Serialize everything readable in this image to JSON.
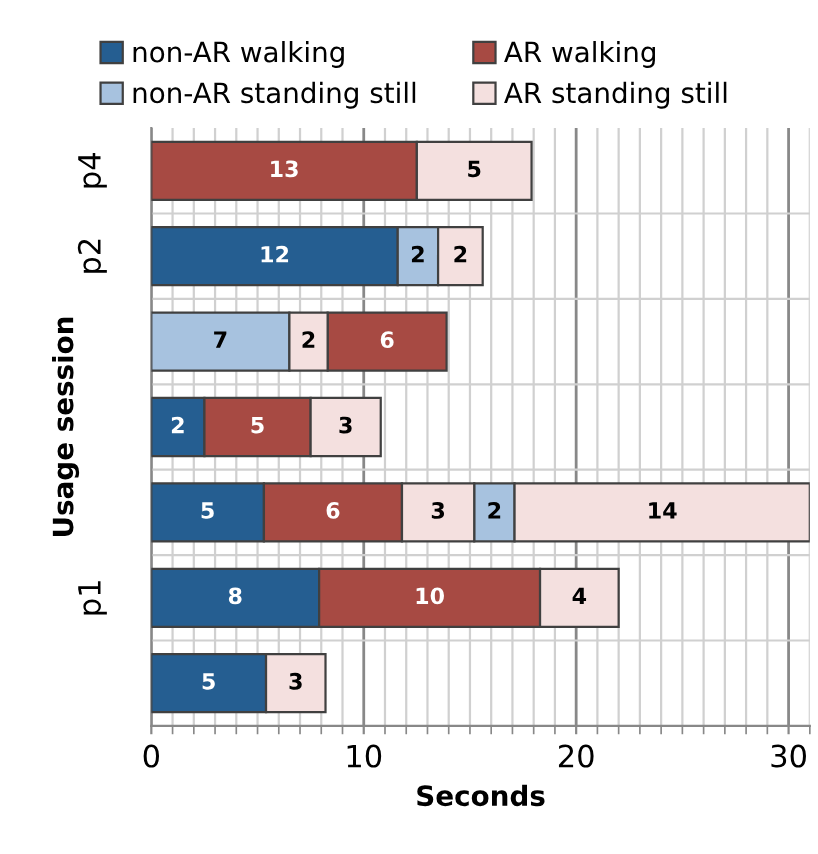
{
  "chart_data": {
    "type": "bar",
    "orientation": "horizontal",
    "xlabel": "Seconds",
    "ylabel": "Usage session",
    "categories": [
      "p4",
      "p2",
      null,
      null,
      null,
      "p1",
      null
    ],
    "series": [
      {
        "name": "non-AR walking",
        "color": "#255e91",
        "values": [
          null,
          11.6,
          null,
          2.5,
          5.3,
          7.9,
          5.4
        ],
        "base": [
          null,
          0,
          null,
          0,
          0,
          0,
          0
        ],
        "value_labels": [
          null,
          "12",
          null,
          "2",
          "5",
          "8",
          "5"
        ]
      },
      {
        "name": "non-AR standing still",
        "color": "#a7c2df",
        "values": [
          null,
          1.9,
          6.5,
          null,
          1.9,
          null,
          null
        ],
        "base": [
          null,
          11.6,
          0,
          null,
          15.2,
          null,
          null
        ],
        "value_labels": [
          null,
          "2",
          "7",
          null,
          "2",
          null,
          null
        ]
      },
      {
        "name": "AR walking",
        "color": "#a74a43",
        "values": [
          12.5,
          null,
          5.6,
          5.0,
          6.5,
          10.4,
          null
        ],
        "base": [
          0,
          null,
          8.3,
          2.5,
          5.3,
          7.9,
          null
        ],
        "value_labels": [
          "13",
          null,
          "6",
          "5",
          "6",
          "10",
          null
        ]
      },
      {
        "name": "AR standing still",
        "color": "#f4e0df",
        "values": [
          5.4,
          2.1,
          1.8,
          3.3,
          3.4,
          3.7,
          2.8
        ],
        "base": [
          12.5,
          13.5,
          6.5,
          7.5,
          11.8,
          18.3,
          5.4
        ],
        "value_labels": [
          "5",
          "2",
          "2",
          "3",
          "3",
          "4",
          "3"
        ]
      },
      {
        "color": "#f4e0df",
        "values": [
          null,
          null,
          null,
          null,
          13.9,
          null,
          null
        ],
        "base": [
          null,
          null,
          null,
          null,
          17.1,
          null,
          null
        ],
        "value_labels": [
          null,
          null,
          null,
          null,
          "14",
          null,
          null
        ]
      }
    ],
    "xlim": [
      0,
      31
    ],
    "xticks": [
      0,
      {
        "value": 1,
        "label": null
      },
      {
        "value": 2,
        "label": null
      },
      {
        "value": 3,
        "label": null
      },
      {
        "value": 4,
        "label": null
      },
      {
        "value": 5,
        "label": null
      },
      {
        "value": 6,
        "label": null
      },
      {
        "value": 7,
        "label": null
      },
      {
        "value": 8,
        "label": null
      },
      {
        "value": 9,
        "label": null
      },
      10,
      {
        "value": 11,
        "label": null
      },
      {
        "value": 12,
        "label": null
      },
      {
        "value": 13,
        "label": null
      },
      {
        "value": 14,
        "label": null
      },
      {
        "value": 15,
        "label": null
      },
      {
        "value": 16,
        "label": null
      },
      {
        "value": 17,
        "label": null
      },
      {
        "value": 18,
        "label": null
      },
      {
        "value": 19,
        "label": null
      },
      20,
      {
        "value": 21,
        "label": null
      },
      {
        "value": 22,
        "label": null
      },
      {
        "value": 23,
        "label": null
      },
      {
        "value": 24,
        "label": null
      },
      {
        "value": 25,
        "label": null
      },
      {
        "value": 26,
        "label": null
      },
      {
        "value": 27,
        "label": null
      },
      {
        "value": 28,
        "label": null
      },
      {
        "value": 29,
        "label": null
      },
      30,
      {
        "value": 31,
        "label": null
      }
    ],
    "grid": true,
    "legend": "top"
  }
}
